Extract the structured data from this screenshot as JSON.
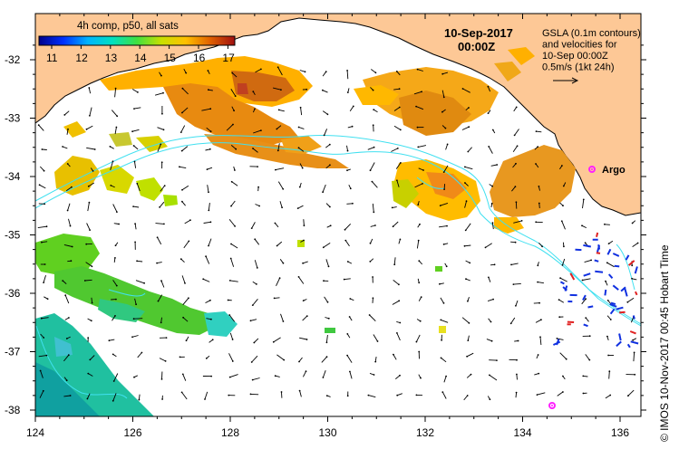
{
  "colorbar": {
    "title": "4h comp, p50, all sats",
    "labels": [
      "11",
      "12",
      "13",
      "14",
      "15",
      "16",
      "17"
    ],
    "stops": [
      "#00008b",
      "#0030ff",
      "#00b4ff",
      "#00e0c0",
      "#40e040",
      "#c8e000",
      "#ffc000",
      "#e06000",
      "#a01010"
    ]
  },
  "date_line1": "10-Sep-2017",
  "date_line2": "00:00Z",
  "gsla_legend": [
    "GSLA (0.1m contours)",
    "and velocities for",
    "10-Sep 00:00Z",
    "0.5m/s (1kt 24h)"
  ],
  "argo_label": "Argo",
  "credit": "© IMOS 10-Nov-2017 00:45 Hobart Time",
  "axes": {
    "x_ticks": [
      "124",
      "126",
      "128",
      "130",
      "132",
      "134",
      "136"
    ],
    "y_ticks": [
      "-32",
      "-33",
      "-34",
      "-35",
      "-36",
      "-37",
      "-38"
    ]
  },
  "colors": {
    "land": "#fdc896",
    "ocean": "#ffffff",
    "contour": "#40e0f0",
    "argo": "#ff20ff"
  }
}
